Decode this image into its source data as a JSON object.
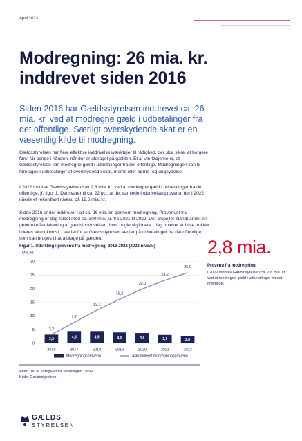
{
  "date": "April 2023",
  "title": "Modregning: 26 mia. kr. inddrevet siden 2016",
  "lead": "Siden 2016 har Gældsstyrelsen inddrevet ca. 26 mia. kr. ved at modregne gæld i udbetalinger fra det offentlige. Særligt overskydende skat er en væsentlig kilde til modregning.",
  "paragraphs": [
    "Gældsstyrelsen har flere effektive inddrivelsesværktøjer til rådighed, der skal sikre, at borgere først får penge i hånden, når der er afdraget på gælden. Et af værktøjerne er, at Gældsstyrelsen kan modregne gæld i udbetalinger fra det offentlige. Modregningen kan fx foretages i udbetalinger af overskydende skat, moms eller børne- og ungeydelse.",
    "I 2022 inddrev Gældsstyrelsen i alt 2,8 mia. kr. ved at modregne gæld i udbetalinger fra det offentlige, jf. figur 1. Det svarer til ca. 22 pct. af det samlede inddrivelsesprovenu, der i 2022 nåede et rekordhøjt niveau på 12,6 mia. kr.",
    "Siden 2016 er der inddrevet i alt ca. 26 mia. kr. gennem modregning. Provenuet fra modregning er dog faldet med ca. 300 mio. kr. fra 2021 til 2022. Det afspejler blandt andet en generel effektivisering af gældsinddrivelsen, hvor nogle skyldnere i dag oplever at blive trukket i deres lønindkomst, i stedet for at Gældsstyrelsen venter på udbetalinger fra det offentlige, som kan bruges til at afdrage på gælden."
  ],
  "figure_title": "Figur 1. Udvikling i provenu fra modregning, 2016-2022 (2022-niveau)",
  "chart_data": {
    "type": "bar_line",
    "ylabel": "Mia. kr.",
    "categories": [
      "2016",
      "2017",
      "2018",
      "2019",
      "2020",
      "2021",
      "2022"
    ],
    "series": [
      {
        "name": "Modregningsprovenu",
        "type": "bar",
        "color": "#1b2254",
        "values": [
          3.2,
          4.5,
          4.5,
          4.0,
          3.8,
          3.1,
          2.8
        ],
        "value_labels": [
          "3,2",
          "4,5",
          "4,5",
          "4,0",
          "3,8",
          "3,1",
          "2,8"
        ]
      },
      {
        "name": "Akkumuleret modregningsprovenu",
        "type": "line",
        "color": "#8e8fb8",
        "values": [
          3.2,
          7.7,
          12.2,
          16.2,
          20.0,
          23.2,
          26.0
        ],
        "value_labels": [
          "3,2",
          "7,7",
          "12,2",
          "16,2",
          "20,0",
          "23,2",
          "26,0"
        ]
      }
    ],
    "ylim": [
      0,
      30
    ],
    "yticks": [
      0,
      5,
      10,
      15,
      20,
      25,
      30
    ],
    "grid": true
  },
  "notes": [
    "Anm.: Tal er korrigeret for udviklingen i BNP.",
    "Kilde: Gældsstyrelsen."
  ],
  "highlight": {
    "value": "2,8 mia.",
    "title": "Provenu fra modregning",
    "text": "I 2022 inddrev Gældsstyrelsen ca. 2,8 mia. kr. ved at modregne gæld i udbetalinger fra det offentlige."
  },
  "logo": [
    "GÆLDS",
    "STYRELSEN"
  ]
}
